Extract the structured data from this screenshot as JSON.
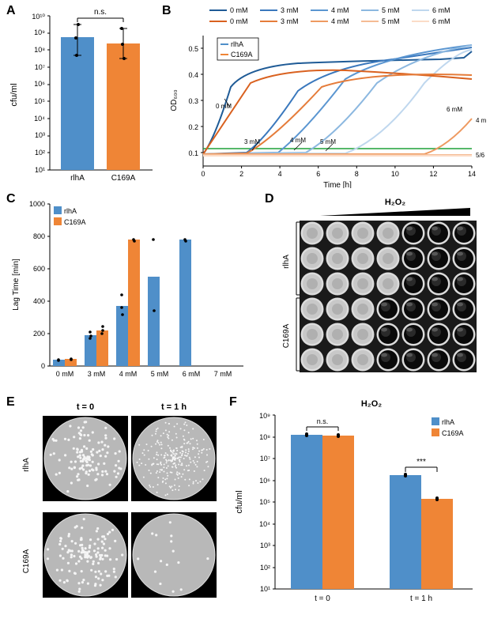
{
  "panelA": {
    "label": "A",
    "type": "bar",
    "categories": [
      "rlhA",
      "C169A"
    ],
    "values": [
      500000000.0,
      250000000.0
    ],
    "errors": [
      [
        30000000.0,
        2000000000.0
      ],
      [
        30000000.0,
        1500000000.0
      ]
    ],
    "bar_colors": [
      "#4f8fc9",
      "#ef8536"
    ],
    "ylabel": "cfu/ml",
    "ylim": [
      10.0,
      10000000000.0
    ],
    "yticks": [
      10.0,
      100.0,
      1000.0,
      10000.0,
      100000.0,
      1000000.0,
      10000000.0,
      100000000.0,
      1000000000.0,
      10000000000.0
    ],
    "ytick_labels": [
      "10¹",
      "10²",
      "10³",
      "10⁴",
      "10⁵",
      "10⁶",
      "10⁷",
      "10⁸",
      "10⁹",
      "10¹⁰"
    ],
    "significance": "n.s.",
    "label_fontsize": 10,
    "marker_color": "#000000",
    "background": "#ffffff",
    "axis_color": "#000000"
  },
  "panelB": {
    "label": "B",
    "type": "line",
    "xlabel": "Time [h]",
    "ylabel": "OD₆₀₀",
    "xlim": [
      0,
      14
    ],
    "ylim": [
      0.05,
      0.55
    ],
    "xticks": [
      0,
      2,
      4,
      6,
      8,
      10,
      12,
      14
    ],
    "yticks": [
      0.1,
      0.2,
      0.3,
      0.4,
      0.5
    ],
    "legend_items_blue": [
      "0 mM",
      "3 mM",
      "4 mM",
      "5 mM",
      "6 mM"
    ],
    "legend_items_orange": [
      "0 mM",
      "3 mM",
      "4 mM",
      "5 mM",
      "6 mM"
    ],
    "colors_blue": [
      "#1f5b96",
      "#3a78bd",
      "#5b96d1",
      "#8cb8e0",
      "#bfd7ee"
    ],
    "colors_orange": [
      "#d9611f",
      "#e57c3a",
      "#ee9a61",
      "#f5bb94",
      "#fbdcc7"
    ],
    "annotations": [
      "0 mM",
      "3 mM",
      "4 mM",
      "5 mM",
      "4 mM",
      "6 mM",
      "5/6 mM"
    ],
    "box_labels": [
      "rlhA",
      "C169A"
    ],
    "box_colors": [
      "#4f8fc9",
      "#ef8536"
    ],
    "threshold_color": "#1fa038",
    "threshold_y": 0.115,
    "label_fontsize": 9
  },
  "panelC": {
    "label": "C",
    "type": "bar",
    "xlabel_categories": [
      "0 mM",
      "3 mM",
      "4 mM",
      "5 mM",
      "6 mM",
      "7 mM"
    ],
    "ylabel": "Lag Time [min]",
    "ylim": [
      0,
      1000
    ],
    "yticks": [
      0,
      200,
      400,
      600,
      800,
      1000
    ],
    "series": {
      "rlhA": {
        "color": "#4f8fc9",
        "values": [
          40,
          190,
          370,
          550,
          780,
          null
        ]
      },
      "C169A": {
        "color": "#ef8536",
        "values": [
          45,
          220,
          780,
          null,
          null,
          null
        ]
      }
    },
    "marker_color": "#000000",
    "label_fontsize": 10
  },
  "panelD": {
    "label": "D",
    "type": "infographic",
    "top_label": "H₂O₂",
    "row_labels": [
      "rlhA",
      "C169A"
    ],
    "rows": 6,
    "cols": 7,
    "well_base_color": "#1a1a1a",
    "well_rim_color": "#dcdcdc",
    "well_center_color": "#0a0a0a",
    "turbid_wells": [
      [
        0,
        0
      ],
      [
        0,
        1
      ],
      [
        0,
        2
      ],
      [
        0,
        3
      ],
      [
        1,
        0
      ],
      [
        1,
        1
      ],
      [
        1,
        2
      ],
      [
        1,
        3
      ],
      [
        2,
        0
      ],
      [
        2,
        1
      ],
      [
        2,
        2
      ],
      [
        2,
        3
      ],
      [
        3,
        0
      ],
      [
        3,
        1
      ],
      [
        3,
        2
      ],
      [
        4,
        0
      ],
      [
        4,
        1
      ],
      [
        4,
        2
      ],
      [
        5,
        0
      ],
      [
        5,
        1
      ],
      [
        5,
        2
      ]
    ],
    "turbid_color": "#c8c8c8",
    "triangle_color": "#000000"
  },
  "panelE": {
    "label": "E",
    "type": "infographic",
    "col_labels": [
      "t = 0",
      "t = 1 h"
    ],
    "row_labels": [
      "rlhA",
      "C169A"
    ],
    "plate_bg": "#b8b8b8",
    "colony_color": "#f5f5f5",
    "border_color": "#000000",
    "colony_counts": [
      [
        120,
        260
      ],
      [
        130,
        15
      ]
    ]
  },
  "panelF": {
    "label": "F",
    "type": "bar",
    "title": "H₂O₂",
    "ylabel": "cfu/ml",
    "categories": [
      "t = 0",
      "t = 1 h"
    ],
    "ylim": [
      10.0,
      1000000000.0
    ],
    "yticks": [
      10.0,
      100.0,
      1000.0,
      10000.0,
      100000.0,
      1000000.0,
      10000000.0,
      100000000.0,
      1000000000.0
    ],
    "ytick_labels": [
      "10¹",
      "10²",
      "10³",
      "10⁴",
      "10⁵",
      "10⁶",
      "10⁷",
      "10⁸",
      "10⁹"
    ],
    "series": {
      "rlhA": {
        "color": "#4f8fc9",
        "values": [
          130000000.0,
          1800000.0
        ]
      },
      "C169A": {
        "color": "#ef8536",
        "values": [
          120000000.0,
          150000.0
        ]
      }
    },
    "significance": [
      "n.s.",
      "***"
    ],
    "marker_color": "#000000",
    "label_fontsize": 10
  }
}
